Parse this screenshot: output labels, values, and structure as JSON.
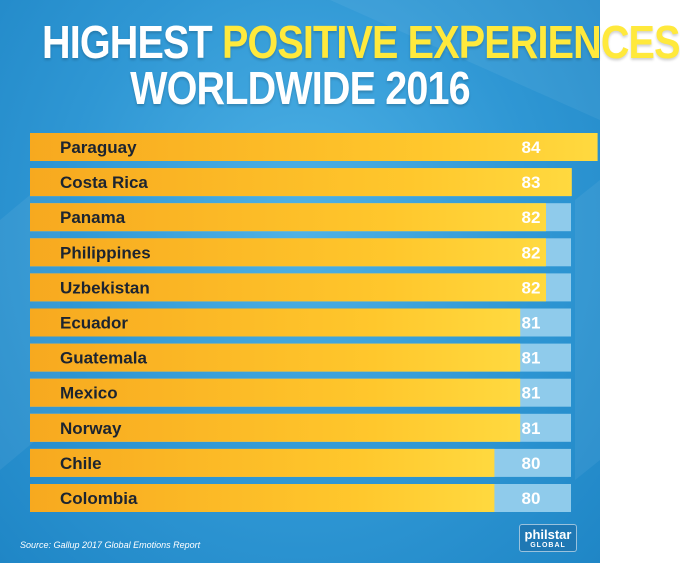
{
  "title": {
    "prefix": "HIGHEST",
    "highlight": "POSITIVE EXPERIENCES",
    "line2": "WORLDWIDE 2016"
  },
  "source": "Source: Gallup 2017 Global Emotions Report",
  "logo": {
    "brand": "philstar",
    "sub": "GLOBAL"
  },
  "colors": {
    "bar_start": "#f7a91f",
    "bar_end": "#ffd53a",
    "value_box": "#8fcbeb",
    "background": "#2f97d4",
    "highlight_text": "#ffe93c"
  },
  "chart_data": {
    "type": "bar",
    "orientation": "horizontal",
    "title": "HIGHEST POSITIVE EXPERIENCES WORLDWIDE 2016",
    "categories": [
      "Paraguay",
      "Costa Rica",
      "Panama",
      "Philippines",
      "Uzbekistan",
      "Ecuador",
      "Guatemala",
      "Mexico",
      "Norway",
      "Chile",
      "Colombia"
    ],
    "values": [
      84,
      83,
      82,
      82,
      82,
      81,
      81,
      81,
      81,
      80,
      80
    ],
    "data_labels": [
      "84",
      "83",
      "82",
      "82",
      "82",
      "81",
      "81",
      "81",
      "81",
      "80",
      "80"
    ],
    "grid": false,
    "legend": "none"
  }
}
